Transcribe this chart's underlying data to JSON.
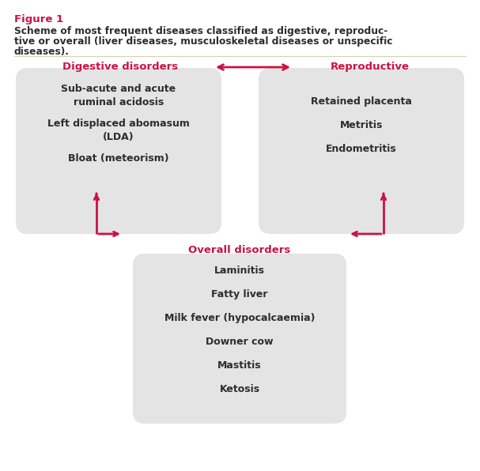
{
  "figure_label": "Figure 1",
  "figure_caption_line1": "Scheme of most frequent diseases classified as digestive, reproduc-",
  "figure_caption_line2": "tive or overall (liver diseases, musculoskeletal diseases or unspecific",
  "figure_caption_line3": "diseases).",
  "background_color": "#ffffff",
  "box_color": "#e4e4e4",
  "text_color": "#2d2d2d",
  "accent_color": "#cc1144",
  "digestive_title": "Digestive disorders",
  "digestive_items": [
    "Sub-acute and acute\nruminal acidosis",
    "Left displaced abomasum\n(LDA)",
    "Bloat (meteorism)"
  ],
  "reproductive_title": "Reproductive",
  "reproductive_items": [
    "Retained placenta",
    "Metritis",
    "Endometritis"
  ],
  "overall_title": "Overall disorders",
  "overall_items": [
    "Laminitis",
    "Fatty liver",
    "Milk fever (hypocalcaemia)",
    "Downer cow",
    "Mastitis",
    "Ketosis"
  ],
  "separator_color": "#d4d4aa",
  "arrow_lw": 2.0
}
